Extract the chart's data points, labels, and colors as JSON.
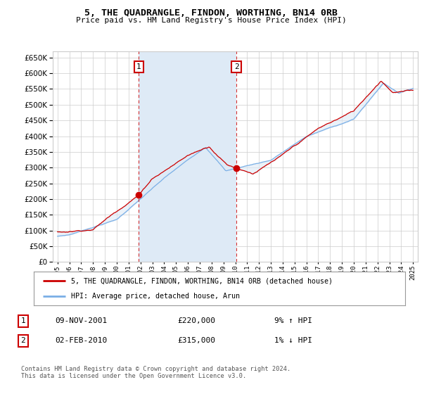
{
  "title": "5, THE QUADRANGLE, FINDON, WORTHING, BN14 0RB",
  "subtitle": "Price paid vs. HM Land Registry's House Price Index (HPI)",
  "ylim": [
    0,
    670000
  ],
  "yticks": [
    0,
    50000,
    100000,
    150000,
    200000,
    250000,
    300000,
    350000,
    400000,
    450000,
    500000,
    550000,
    600000,
    650000
  ],
  "marker1_year": 2001.86,
  "marker2_year": 2010.09,
  "marker1_price": 220000,
  "marker2_price": 315000,
  "legend_entry1": "5, THE QUADRANGLE, FINDON, WORTHING, BN14 0RB (detached house)",
  "legend_entry2": "HPI: Average price, detached house, Arun",
  "table_row1_num": "1",
  "table_row1_date": "09-NOV-2001",
  "table_row1_price": "£220,000",
  "table_row1_hpi": "9% ↑ HPI",
  "table_row2_num": "2",
  "table_row2_date": "02-FEB-2010",
  "table_row2_price": "£315,000",
  "table_row2_hpi": "1% ↓ HPI",
  "footer": "Contains HM Land Registry data © Crown copyright and database right 2024.\nThis data is licensed under the Open Government Licence v3.0.",
  "red_color": "#cc0000",
  "blue_color": "#7aafe6",
  "shade_color": "#deeaf6",
  "grid_color": "#cccccc",
  "bg_color": "#ffffff"
}
